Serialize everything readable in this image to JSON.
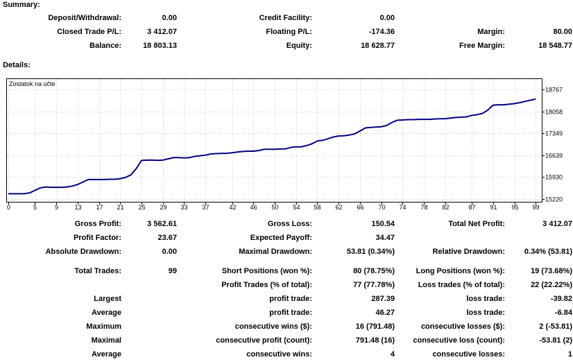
{
  "summary": {
    "title": "Summary:",
    "deposit_label": "Deposit/Withdrawal:",
    "deposit_value": "0.00",
    "credit_label": "Credit Facility:",
    "credit_value": "0.00",
    "closed_pl_label": "Closed Trade P/L:",
    "closed_pl_value": "3 412.07",
    "floating_label": "Floating P/L:",
    "floating_value": "-174.36",
    "margin_label": "Margin:",
    "margin_value": "80.00",
    "balance_label": "Balance:",
    "balance_value": "18 803.13",
    "equity_label": "Equity:",
    "equity_value": "18 628.77",
    "free_margin_label": "Free Margin:",
    "free_margin_value": "18 548.77"
  },
  "details": {
    "title": "Details:",
    "gross_profit_label": "Gross Profit:",
    "gross_profit_value": "3 562.61",
    "gross_loss_label": "Gross Loss:",
    "gross_loss_value": "150.54",
    "total_net_label": "Total Net Profit:",
    "total_net_value": "3 412.07",
    "profit_factor_label": "Profit Factor:",
    "profit_factor_value": "23.67",
    "expected_payoff_label": "Expected Payoff:",
    "expected_payoff_value": "34.47",
    "abs_dd_label": "Absolute Drawdown:",
    "abs_dd_value": "0.00",
    "max_dd_label": "Maximal Drawdown:",
    "max_dd_value": "53.81 (0.34%)",
    "rel_dd_label": "Relative Drawdown:",
    "rel_dd_value": "0.34% (53.81)",
    "total_trades_label": "Total Trades:",
    "total_trades_value": "99",
    "short_label": "Short Positions (won %):",
    "short_value": "80 (78.75%)",
    "long_label": "Long Positions (won %):",
    "long_value": "19 (73.68%)",
    "profit_trades_label": "Profit Trades (% of total):",
    "profit_trades_value": "77 (77.78%)",
    "loss_trades_label": "Loss trades (% of total):",
    "loss_trades_value": "22 (22.22%)",
    "largest_label": "Largest",
    "largest_profit_label": "profit trade:",
    "largest_profit_value": "287.39",
    "largest_loss_label": "loss trade:",
    "largest_loss_value": "-39.82",
    "average_label": "Average",
    "average_profit_label": "profit trade:",
    "average_profit_value": "46.27",
    "average_loss_label": "loss trade:",
    "average_loss_value": "-6.84",
    "maximum_label": "Maximum",
    "max_cons_wins_label": "consecutive wins ($):",
    "max_cons_wins_value": "16 (791.48)",
    "max_cons_losses_label": "consecutive losses ($):",
    "max_cons_losses_value": "2 (-53.81)",
    "maximal_label": "Maximal",
    "maximal_cons_profit_label": "consecutive profit (count):",
    "maximal_cons_profit_value": "791.48 (16)",
    "maximal_cons_loss_label": "consecutive loss (count):",
    "maximal_cons_loss_value": "-53.81 (2)",
    "average2_label": "Average",
    "avg_cons_wins_label": "consecutive wins:",
    "avg_cons_wins_value": "4",
    "avg_cons_losses_label": "consecutive losses:",
    "avg_cons_losses_value": "1"
  },
  "chart_data": {
    "type": "line",
    "legend": "Zostatok na účte",
    "line_color": "#000080",
    "grid": true,
    "xlim": [
      0,
      100
    ],
    "ylim": [
      15220,
      18767
    ],
    "x_ticks": [
      0,
      5,
      9,
      13,
      17,
      21,
      25,
      29,
      33,
      37,
      42,
      46,
      50,
      54,
      58,
      62,
      66,
      70,
      74,
      78,
      82,
      87,
      91,
      95,
      99
    ],
    "y_ticks": [
      15220,
      15930,
      16639,
      17349,
      18058,
      18767
    ],
    "series": [
      {
        "x": [
          0,
          3,
          4,
          5,
          6,
          7,
          8,
          9,
          10,
          11,
          12,
          13,
          14,
          15,
          16,
          17,
          18,
          19,
          20,
          21,
          22,
          23,
          24,
          25,
          26,
          27,
          28,
          29,
          30,
          31,
          32,
          33,
          34,
          35,
          36,
          37,
          38,
          39,
          40,
          41,
          42,
          43,
          44,
          45,
          46,
          47,
          48,
          49,
          50,
          51,
          52,
          53,
          54,
          55,
          56,
          57,
          58,
          59,
          60,
          61,
          62,
          63,
          64,
          65,
          66,
          67,
          68,
          69,
          70,
          71,
          72,
          73,
          74,
          75,
          76,
          77,
          78,
          79,
          80,
          81,
          82,
          83,
          84,
          85,
          86,
          87,
          88,
          89,
          90,
          91,
          92,
          93,
          94,
          95,
          96,
          97,
          98,
          99
        ],
        "y": [
          15391,
          15391,
          15420,
          15500,
          15580,
          15610,
          15600,
          15600,
          15600,
          15610,
          15640,
          15690,
          15770,
          15850,
          15850,
          15850,
          15850,
          15860,
          15860,
          15880,
          15920,
          16000,
          16200,
          16470,
          16480,
          16480,
          16470,
          16480,
          16520,
          16560,
          16560,
          16550,
          16560,
          16600,
          16620,
          16640,
          16680,
          16690,
          16700,
          16700,
          16720,
          16740,
          16760,
          16770,
          16770,
          16790,
          16830,
          16830,
          16830,
          16840,
          16840,
          16890,
          16910,
          16910,
          16950,
          17010,
          17100,
          17120,
          17170,
          17230,
          17260,
          17270,
          17290,
          17330,
          17420,
          17520,
          17540,
          17550,
          17560,
          17600,
          17700,
          17770,
          17780,
          17790,
          17790,
          17800,
          17800,
          17800,
          17810,
          17820,
          17820,
          17840,
          17860,
          17870,
          17880,
          17930,
          17950,
          17990,
          18100,
          18260,
          18270,
          18270,
          18290,
          18310,
          18340,
          18380,
          18420,
          18460
        ]
      }
    ]
  }
}
